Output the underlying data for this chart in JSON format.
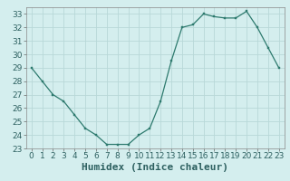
{
  "x": [
    0,
    1,
    2,
    3,
    4,
    5,
    6,
    7,
    8,
    9,
    10,
    11,
    12,
    13,
    14,
    15,
    16,
    17,
    18,
    19,
    20,
    21,
    22,
    23
  ],
  "y": [
    29.0,
    28.0,
    27.0,
    26.5,
    25.5,
    24.5,
    24.0,
    23.3,
    23.3,
    23.3,
    24.0,
    24.5,
    26.5,
    29.5,
    32.0,
    32.2,
    33.0,
    32.8,
    32.7,
    32.7,
    33.2,
    32.0,
    30.5,
    29.0
  ],
  "line_color": "#2d7a6e",
  "marker_color": "#2d7a6e",
  "bg_color": "#d4eeee",
  "grid_color": "#b8d8d8",
  "xlabel": "Humidex (Indice chaleur)",
  "xlim": [
    -0.5,
    23.5
  ],
  "ylim": [
    23,
    33.5
  ],
  "yticks": [
    23,
    24,
    25,
    26,
    27,
    28,
    29,
    30,
    31,
    32,
    33
  ],
  "xticks": [
    0,
    1,
    2,
    3,
    4,
    5,
    6,
    7,
    8,
    9,
    10,
    11,
    12,
    13,
    14,
    15,
    16,
    17,
    18,
    19,
    20,
    21,
    22,
    23
  ],
  "tick_label_fontsize": 6.5,
  "xlabel_fontsize": 8.0
}
